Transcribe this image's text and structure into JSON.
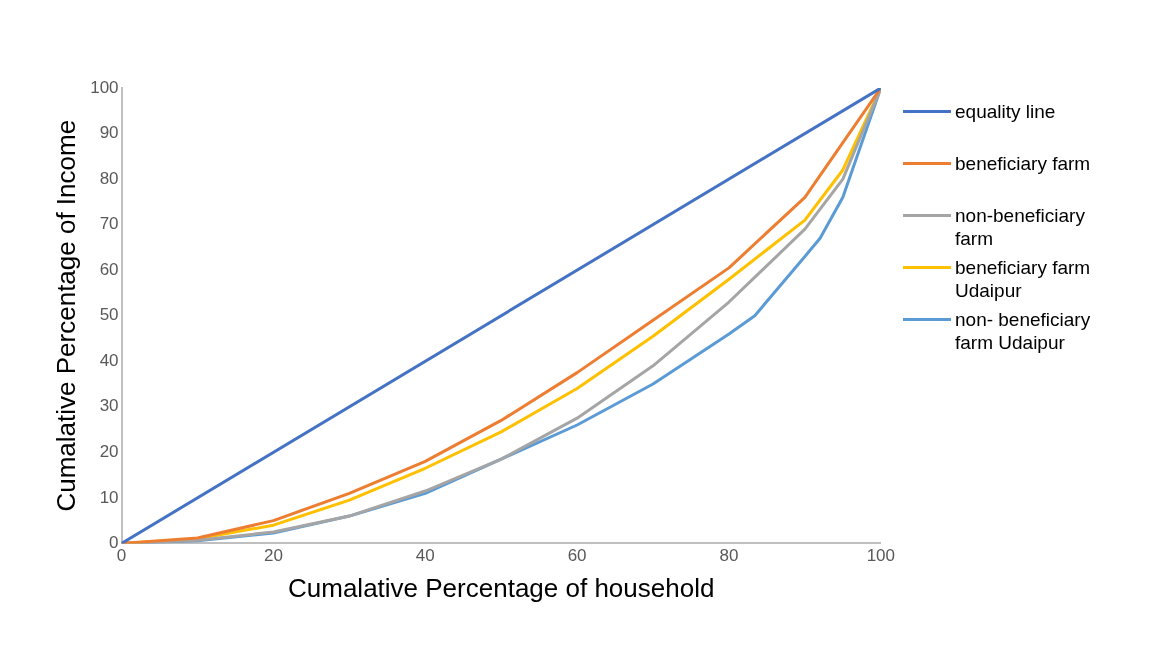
{
  "chart_data": {
    "type": "line",
    "xlabel": "Cumalative Percentage of household",
    "ylabel": "Cumalative Percentage of Income",
    "xlim": [
      0,
      100
    ],
    "xticks": [
      0,
      20,
      40,
      60,
      80,
      100
    ],
    "ylim": [
      0,
      100
    ],
    "yticks": [
      0,
      10,
      20,
      30,
      40,
      50,
      60,
      70,
      80,
      90,
      100
    ],
    "grid": false,
    "legend": "right",
    "marker": "none",
    "line_style": "solid",
    "series": [
      {
        "name": "equality line",
        "color": "#4472c4",
        "x": [
          0,
          100
        ],
        "values": [
          0,
          100
        ]
      },
      {
        "name": "beneficiary farm",
        "color": "#ed7d31",
        "x": [
          0,
          10,
          20,
          30,
          40,
          50,
          60,
          70,
          80,
          90,
          95,
          100
        ],
        "values": [
          0,
          1.2,
          5,
          11,
          18,
          27,
          37.5,
          49,
          60.5,
          76,
          88,
          100
        ]
      },
      {
        "name": "non-beneficiary farm",
        "color": "#a5a5a5",
        "x": [
          0,
          10,
          20,
          30,
          40,
          50,
          60,
          70,
          80,
          90,
          95,
          100
        ],
        "values": [
          0,
          0.7,
          2.5,
          6,
          11.5,
          18.5,
          27.5,
          39,
          53,
          69,
          80,
          100
        ]
      },
      {
        "name": "beneficiary farm Udaipur",
        "color": "#ffc000",
        "x": [
          0,
          10,
          20,
          30,
          40,
          50,
          60,
          70,
          80,
          90,
          95,
          100
        ],
        "values": [
          0,
          1,
          4,
          9.5,
          16.5,
          24.5,
          34,
          45.5,
          58,
          71,
          82,
          100
        ]
      },
      {
        "name": "non- beneficiary farm Udaipur",
        "color": "#5b9bd5",
        "x": [
          0,
          10,
          20,
          30,
          40,
          50,
          60,
          70,
          80,
          83.4,
          90,
          92,
          95,
          100
        ],
        "values": [
          0,
          0.6,
          2.3,
          6,
          11,
          18.5,
          26,
          35,
          46,
          50,
          63,
          67,
          76,
          100
        ]
      }
    ]
  }
}
